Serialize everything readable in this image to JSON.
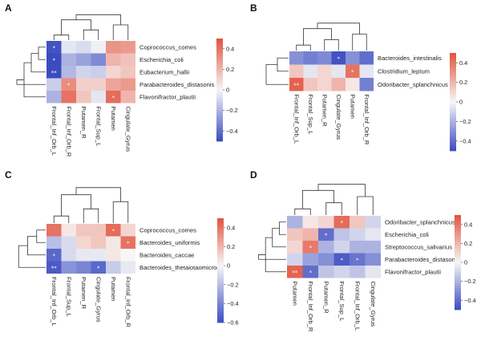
{
  "chart_data": [
    {
      "type": "heatmap",
      "panel": "A",
      "rows": [
        "Coprococcus_comes",
        "Escherichia_coli",
        "Eubacterium_hallii",
        "Parabacteroides_distasonis",
        "Flavonifractor_plautii"
      ],
      "columns": [
        "Frontal_Inf_Orb_L",
        "Frontal_Inf_Orb_R",
        "Putamen_R",
        "Frontal_Sup_L",
        "Putamen",
        "Cingulate_Gyrus"
      ],
      "values": [
        [
          -0.48,
          -0.05,
          -0.08,
          -0.02,
          0.3,
          0.28
        ],
        [
          -0.5,
          -0.2,
          -0.25,
          -0.32,
          0.2,
          0.16
        ],
        [
          -0.55,
          -0.18,
          -0.1,
          -0.12,
          0.1,
          0.15
        ],
        [
          -0.12,
          0.32,
          0.12,
          0.12,
          0.25,
          0.28
        ],
        [
          -0.2,
          0.4,
          0.15,
          -0.05,
          0.42,
          0.2
        ]
      ],
      "stars": [
        [
          "*",
          "",
          "",
          "",
          "",
          ""
        ],
        [
          "*",
          "",
          "",
          "",
          "",
          ""
        ],
        [
          "**",
          "",
          "",
          "",
          "",
          ""
        ],
        [
          "",
          "*",
          "",
          "",
          "",
          ""
        ],
        [
          "",
          "",
          "",
          "",
          "*",
          ""
        ]
      ],
      "colorbar": {
        "range": [
          -0.5,
          0.5
        ],
        "ticks": [
          0.4,
          0.2,
          0,
          -0.2,
          -0.4
        ],
        "tick_labels": [
          "0.4",
          "0.2",
          "0",
          "−0.2",
          "−0.4"
        ]
      }
    },
    {
      "type": "heatmap",
      "panel": "B",
      "rows": [
        "Bacteroides_intestinalis",
        "Clostridium_leptum",
        "Odoribacter_splanchnicus"
      ],
      "columns": [
        "Frontal_Inf_Orb_L",
        "Frontal_Sup_L",
        "Putamen_R",
        "Cingulate_Gyrus",
        "Putamen",
        "Frontal_Inf_Orb_R"
      ],
      "values": [
        [
          -0.3,
          -0.35,
          -0.32,
          -0.48,
          -0.3,
          -0.4
        ],
        [
          0.15,
          -0.05,
          0.1,
          -0.05,
          0.4,
          -0.05
        ],
        [
          0.45,
          0.15,
          0.1,
          0.2,
          0.05,
          -0.35
        ]
      ],
      "stars": [
        [
          "",
          "",
          "",
          "*",
          "",
          ""
        ],
        [
          "",
          "",
          "",
          "",
          "*",
          ""
        ],
        [
          "**",
          "",
          "",
          "",
          "",
          ""
        ]
      ],
      "colorbar": {
        "range": [
          -0.5,
          0.5
        ],
        "ticks": [
          0.4,
          0.2,
          0,
          -0.2,
          -0.4
        ],
        "tick_labels": [
          "0.4",
          "0.2",
          "0",
          "−0.2",
          "−0.4"
        ]
      }
    },
    {
      "type": "heatmap",
      "panel": "C",
      "rows": [
        "Coprococcus_comes",
        "Bacteroides_uniformis",
        "Bacteroides_caccae",
        "Bacteroides_thetaiotaomicron"
      ],
      "columns": [
        "Frontal_Inf_Orb_L",
        "Frontal_Sup_L",
        "Putamen_R",
        "Cingulate_Gyrus",
        "Putamen",
        "Frontal_Inf_Orb_R"
      ],
      "values": [
        [
          0.4,
          0.05,
          0.15,
          0.15,
          0.42,
          0.1
        ],
        [
          -0.2,
          -0.1,
          0.1,
          0.15,
          0.05,
          0.4
        ],
        [
          -0.5,
          -0.1,
          -0.05,
          -0.05,
          0.05,
          0.0
        ],
        [
          -0.55,
          -0.35,
          -0.4,
          -0.5,
          -0.15,
          -0.05
        ]
      ],
      "stars": [
        [
          "",
          "",
          "",
          "",
          "*",
          ""
        ],
        [
          "",
          "",
          "",
          "",
          "",
          "*"
        ],
        [
          "*",
          "",
          "",
          "",
          "",
          ""
        ],
        [
          "**",
          "",
          "",
          "*",
          "",
          ""
        ]
      ],
      "colorbar": {
        "range": [
          -0.6,
          0.5
        ],
        "ticks": [
          0.4,
          0.2,
          0,
          -0.2,
          -0.4,
          -0.6
        ],
        "tick_labels": [
          "0.4",
          "0.2",
          "0",
          "−0.2",
          "−0.4",
          "−0.6"
        ]
      }
    },
    {
      "type": "heatmap",
      "panel": "D",
      "rows": [
        "Odoribacter_splanchnicus",
        "Escherichia_coli",
        "Streptococcus_salivarius",
        "Parabacteroides_distasonis",
        "Flavonifractor_plautii"
      ],
      "columns": [
        "Putamen",
        "Frontal_Inf_Orb_R",
        "Putamen_R",
        "Frontal_Sup_L",
        "Frontal_Inf_Orb_L",
        "Cingulate_Gyrus"
      ],
      "values": [
        [
          -0.2,
          0.05,
          0.1,
          0.42,
          0.15,
          -0.1
        ],
        [
          0.15,
          0.2,
          -0.4,
          -0.15,
          -0.1,
          -0.05
        ],
        [
          0.1,
          0.38,
          -0.2,
          -0.1,
          -0.2,
          -0.2
        ],
        [
          -0.1,
          -0.25,
          -0.3,
          -0.45,
          -0.38,
          -0.3
        ],
        [
          0.45,
          -0.4,
          -0.15,
          -0.1,
          -0.15,
          -0.05
        ]
      ],
      "stars": [
        [
          "",
          "",
          "",
          "*",
          "",
          ""
        ],
        [
          "",
          "",
          "*",
          "",
          "",
          ""
        ],
        [
          "",
          "*",
          "",
          "",
          "",
          ""
        ],
        [
          "",
          "",
          "",
          "*",
          "*",
          ""
        ],
        [
          "**",
          "*",
          "",
          "",
          "",
          ""
        ]
      ],
      "colorbar": {
        "range": [
          -0.5,
          0.5
        ],
        "ticks": [
          0.4,
          0.2,
          0,
          -0.2,
          -0.4
        ],
        "tick_labels": [
          "0.4",
          "0.2",
          "0",
          "−0.2",
          "−0.4"
        ]
      }
    }
  ],
  "colors": {
    "low": "#3b4cc0",
    "mid": "#f7f7f7",
    "high": "#e2523c"
  }
}
